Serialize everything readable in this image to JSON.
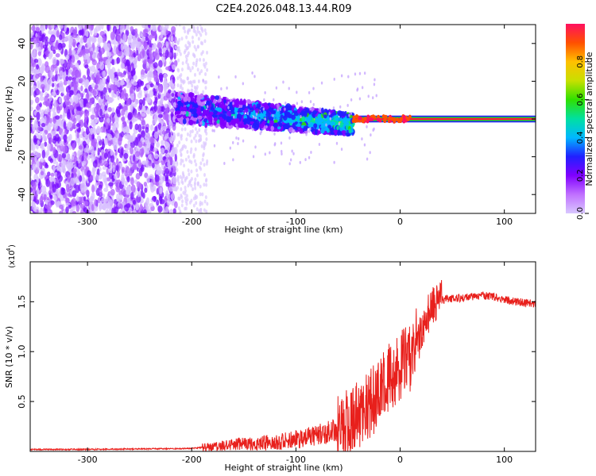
{
  "page_title": "C2E4.2026.048.13.44.R09",
  "colors": {
    "snr_line": "#e8201c",
    "frame": "#000000",
    "background": "#ffffff",
    "colorbar_stops": [
      "#d8c8ff",
      "#c070ff",
      "#8000ff",
      "#2020ff",
      "#00b8ff",
      "#00e0a0",
      "#30e000",
      "#c8e000",
      "#ffc000",
      "#ff5000",
      "#ff1060"
    ]
  },
  "chart_data": [
    {
      "type": "heatmap",
      "title": "C2E4.2026.048.13.44.R09",
      "xlabel": "Height of straight line (km)",
      "ylabel": "Frequency (Hz)",
      "xlim": [
        -355,
        130
      ],
      "ylim": [
        -50,
        50
      ],
      "xticks": [
        -300,
        -200,
        -100,
        0,
        100
      ],
      "yticks": [
        -40,
        -20,
        0,
        20,
        40
      ],
      "xtick_labels": [
        "-300",
        "-200",
        "-100",
        "0",
        "100"
      ],
      "ytick_labels": [
        "-40",
        "-20",
        "0",
        "20",
        "40"
      ],
      "colorbar": {
        "label": "Normalized spectral amplitude",
        "range": [
          0,
          1
        ],
        "ticks": [
          0.0,
          0.2,
          0.4,
          0.6,
          0.8
        ],
        "tick_labels": [
          "0.0",
          "0.2",
          "0.4",
          "0.6",
          "0.8"
        ]
      },
      "regions": [
        {
          "name": "noise",
          "x": [
            -355,
            -215
          ],
          "freq": [
            -50,
            50
          ],
          "amplitude": 0.05
        },
        {
          "name": "fading noise",
          "x": [
            -215,
            -185
          ],
          "freq": [
            -50,
            50
          ],
          "amplitude": 0.03
        },
        {
          "name": "signal onset",
          "x": [
            -215,
            -45
          ],
          "freq_center": [
            6,
            -3
          ],
          "freq_halfwidth": 8,
          "amplitude": [
            0.12,
            0.35
          ]
        },
        {
          "name": "signal lock",
          "x": [
            -45,
            130
          ],
          "freq_center": 0,
          "amplitude": 0.9
        }
      ]
    },
    {
      "type": "line",
      "xlabel": "Height of straight line (km)",
      "ylabel": "SNR (10 * v/v)",
      "scale_label": "(x10",
      "scale_exponent": "4",
      "xlim": [
        -355,
        130
      ],
      "ylim": [
        0,
        1.9
      ],
      "xticks": [
        -300,
        -200,
        -100,
        0,
        100
      ],
      "yticks": [
        0.5,
        1.0,
        1.5
      ],
      "xtick_labels": [
        "-300",
        "-200",
        "-100",
        "0",
        "100"
      ],
      "ytick_labels": [
        "0.5",
        "1.0",
        "1.5"
      ],
      "series": [
        {
          "name": "SNR",
          "color": "#e8201c",
          "x": [
            -355,
            -300,
            -250,
            -200,
            -180,
            -160,
            -140,
            -120,
            -100,
            -80,
            -60,
            -45,
            -30,
            -20,
            -10,
            0,
            10,
            20,
            30,
            40,
            50,
            60,
            70,
            80,
            90,
            100,
            110,
            120,
            130
          ],
          "y": [
            0.02,
            0.02,
            0.025,
            0.03,
            0.05,
            0.07,
            0.08,
            0.09,
            0.12,
            0.16,
            0.22,
            0.32,
            0.45,
            0.6,
            0.75,
            0.85,
            0.95,
            1.2,
            1.45,
            1.52,
            1.53,
            1.54,
            1.55,
            1.56,
            1.55,
            1.52,
            1.5,
            1.49,
            1.48
          ]
        }
      ]
    }
  ]
}
